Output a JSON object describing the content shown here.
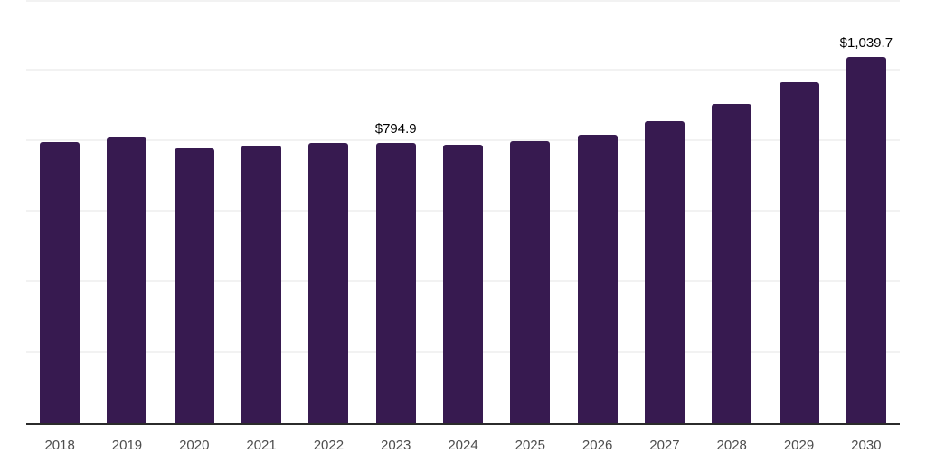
{
  "chart_data": {
    "type": "bar",
    "title": "",
    "xlabel": "",
    "ylabel": "",
    "categories": [
      "2018",
      "2019",
      "2020",
      "2021",
      "2022",
      "2023",
      "2024",
      "2025",
      "2026",
      "2027",
      "2028",
      "2029",
      "2030"
    ],
    "values": [
      798.6,
      811.0,
      780.2,
      788.4,
      794.2,
      794.9,
      790.0,
      799.4,
      817.2,
      855.5,
      904.9,
      966.2,
      1039.7
    ],
    "data_labels": [
      "",
      "",
      "",
      "",
      "",
      "$794.9",
      "",
      "",
      "",
      "",
      "",
      "",
      "$1,039.7"
    ],
    "ylim": [
      0,
      1200
    ],
    "grid_interval": 200,
    "grid": "horizontal-only",
    "y_axis_ticks": "hidden",
    "legend": "none"
  },
  "colors": {
    "bar": "#371a50",
    "axis": "#2b2b2b",
    "gridline": "#f2f2f2",
    "tick_label": "#4d4d4d",
    "data_label": "#000000",
    "background": "#ffffff"
  }
}
